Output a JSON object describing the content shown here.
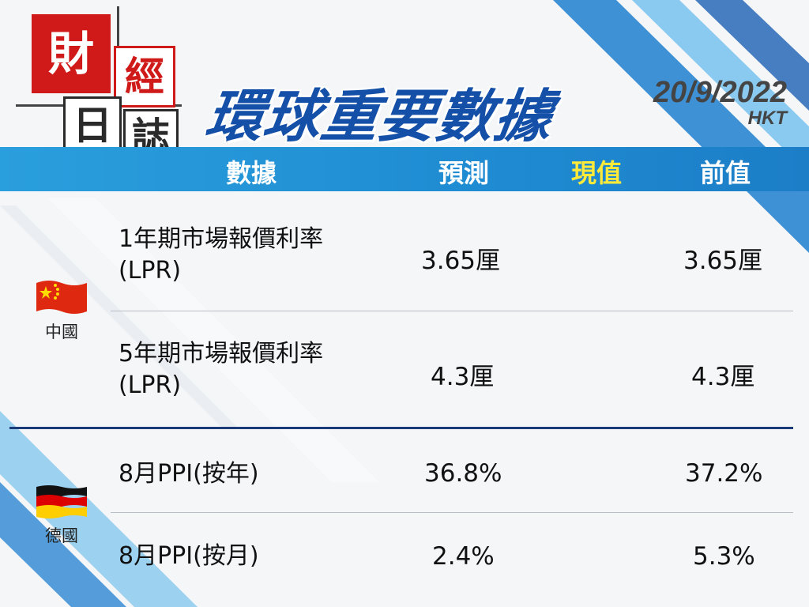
{
  "logo": {
    "c1": "財",
    "c2": "經",
    "c3": "日",
    "c4": "誌"
  },
  "title": "環球重要數據",
  "date": {
    "value": "20/9/2022",
    "timezone": "HKT"
  },
  "columns": {
    "indicator": "數據",
    "forecast": "預測",
    "actual": "現值",
    "previous": "前值"
  },
  "colors": {
    "header_bg": "#2196d8",
    "actual_header": "#ffea3a",
    "title": "#1550a8",
    "logo_red": "#d01a1a"
  },
  "groups": [
    {
      "country": "中國",
      "flag": "china-flag",
      "rows": [
        {
          "line1": "1年期市場報價利率",
          "line2": "(LPR)",
          "forecast": "3.65厘",
          "actual": "",
          "previous": "3.65厘"
        },
        {
          "line1": "5年期市場報價利率",
          "line2": "(LPR)",
          "forecast": "4.3厘",
          "actual": "",
          "previous": "4.3厘"
        }
      ]
    },
    {
      "country": "德國",
      "flag": "germany-flag",
      "rows": [
        {
          "line1": "8月PPI(按年)",
          "forecast": "36.8%",
          "actual": "",
          "previous": "37.2%"
        },
        {
          "line1": "8月PPI(按月)",
          "forecast": "2.4%",
          "actual": "",
          "previous": "5.3%"
        }
      ]
    }
  ]
}
